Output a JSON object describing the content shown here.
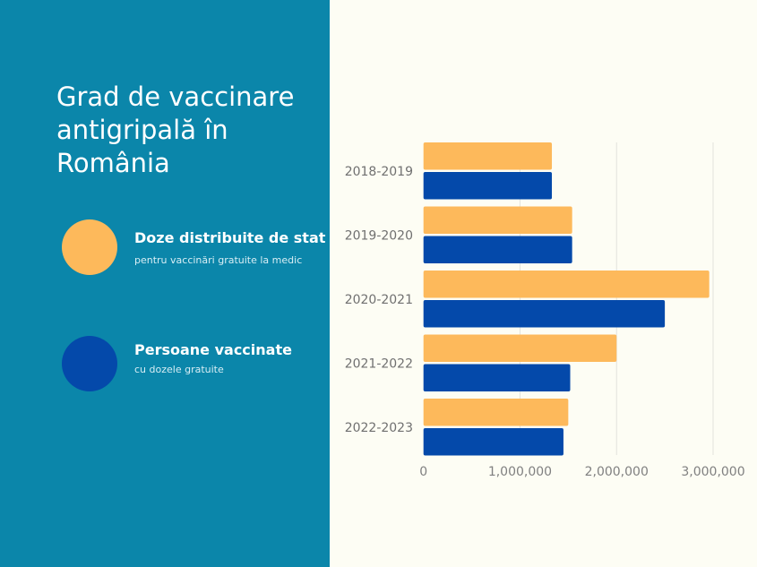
{
  "chart_data": {
    "type": "bar",
    "orientation": "horizontal",
    "title": "Grad de vaccinare antigripală în România",
    "categories": [
      "2018-2019",
      "2019-2020",
      "2020-2021",
      "2021-2022",
      "2022-2023"
    ],
    "series": [
      {
        "name": "Doze distribuite de stat",
        "subtitle": "pentru vaccinări gratuite la medic",
        "color": "#fdb95b",
        "values": [
          1330000,
          1540000,
          2960000,
          2000000,
          1500000
        ]
      },
      {
        "name": "Persoane vaccinate",
        "subtitle": "cu dozele gratuite",
        "color": "#0449aa",
        "values": [
          1330000,
          1540000,
          2500000,
          1520000,
          1450000
        ]
      }
    ],
    "xlim": [
      0,
      3000000
    ],
    "ticks": [
      "0",
      "1,000,000",
      "2,000,000",
      "3,000,000"
    ],
    "tick_values": [
      0,
      1000000,
      2000000,
      3000000
    ],
    "grid": true,
    "legend_position": "left"
  },
  "colors": {
    "panel": "#0b86aa",
    "background": "#fdfdf4"
  }
}
